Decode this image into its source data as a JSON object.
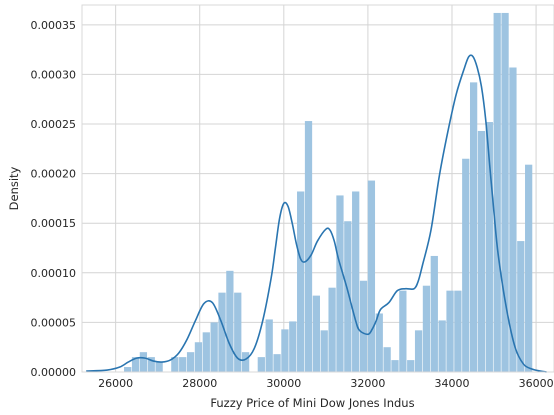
{
  "chart_data": {
    "type": "bar",
    "title": "",
    "xlabel": "Fuzzy Price of Mini Dow Jones Indus",
    "ylabel": "Density",
    "xlim": [
      25200,
      36450
    ],
    "ylim": [
      0,
      0.00037
    ],
    "grid": true,
    "legend": "none",
    "x_ticks": [
      26000,
      28000,
      30000,
      32000,
      34000,
      36000
    ],
    "x_tick_labels": [
      "26000",
      "28000",
      "30000",
      "32000",
      "34000",
      "36000"
    ],
    "y_ticks": [
      0,
      5e-05,
      0.0001,
      0.00015,
      0.0002,
      0.00025,
      0.0003,
      0.00035
    ],
    "y_tick_labels": [
      "0.00000",
      "0.00005",
      "0.00010",
      "0.00015",
      "0.00020",
      "0.00025",
      "0.00030",
      "0.00035"
    ],
    "series": [
      {
        "kind": "histogram",
        "color": "#9ec4e1",
        "bin_start": 26200,
        "bin_width": 187,
        "values": [
          5e-06,
          1.5e-05,
          2e-05,
          1.5e-05,
          1e-05,
          0.0,
          1.5e-05,
          1.5e-05,
          2e-05,
          3e-05,
          4e-05,
          5e-05,
          8e-05,
          0.000102,
          8e-05,
          2e-05,
          0.0,
          1.5e-05,
          5.3e-05,
          1.8e-05,
          4.3e-05,
          5.1e-05,
          0.000182,
          0.000253,
          7.7e-05,
          4.2e-05,
          8.5e-05,
          0.000178,
          0.000152,
          0.000182,
          9.2e-05,
          0.000193,
          5.9e-05,
          2.5e-05,
          1.2e-05,
          8.2e-05,
          1.2e-05,
          4.2e-05,
          8.7e-05,
          0.000117,
          5.2e-05,
          8.2e-05,
          8.2e-05,
          0.000215,
          0.000292,
          0.000243,
          0.000252,
          0.000362,
          0.000362,
          0.000307,
          0.000132,
          0.000209
        ]
      },
      {
        "kind": "kde",
        "color": "#2a75b0",
        "x": [
          25300,
          25800,
          26100,
          26300,
          26500,
          26700,
          26900,
          27100,
          27300,
          27500,
          27700,
          27900,
          28100,
          28300,
          28500,
          28700,
          28900,
          29100,
          29300,
          29500,
          29700,
          29800,
          29900,
          30000,
          30100,
          30200,
          30300,
          30400,
          30500,
          30650,
          30800,
          31000,
          31100,
          31200,
          31300,
          31500,
          31700,
          31800,
          32000,
          32100,
          32200,
          32300,
          32500,
          32700,
          32900,
          33100,
          33200,
          33300,
          33500,
          33700,
          33900,
          34100,
          34300,
          34400,
          34500,
          34600,
          34700,
          34800,
          34900,
          35000,
          35100,
          35300,
          35500,
          35700,
          35900,
          36100,
          36250
        ],
        "y": [
          1e-06,
          2e-06,
          5e-06,
          1e-05,
          1.4e-05,
          1.4e-05,
          1.1e-05,
          1e-05,
          1.2e-05,
          1.9e-05,
          3.3e-05,
          5.2e-05,
          6.9e-05,
          7e-05,
          5.2e-05,
          2.9e-05,
          1.4e-05,
          1.3e-05,
          2.4e-05,
          5.2e-05,
          9.5e-05,
          0.000125,
          0.000155,
          0.00017,
          0.000167,
          0.00015,
          0.000129,
          0.000114,
          0.000111,
          0.000118,
          0.000132,
          0.000144,
          0.000143,
          0.000132,
          0.000114,
          8.5e-05,
          5.3e-05,
          4.2e-05,
          3.8e-05,
          4.3e-05,
          5.2e-05,
          6.3e-05,
          7e-05,
          8.2e-05,
          8.4e-05,
          8.4e-05,
          9.2e-05,
          0.000108,
          0.000143,
          0.000198,
          0.000242,
          0.00028,
          0.000307,
          0.000318,
          0.000318,
          0.000307,
          0.000288,
          0.000255,
          0.000207,
          0.00016,
          0.000118,
          6.3e-05,
          2.5e-05,
          8e-06,
          3e-06,
          1e-06,
          0.0
        ]
      }
    ]
  }
}
